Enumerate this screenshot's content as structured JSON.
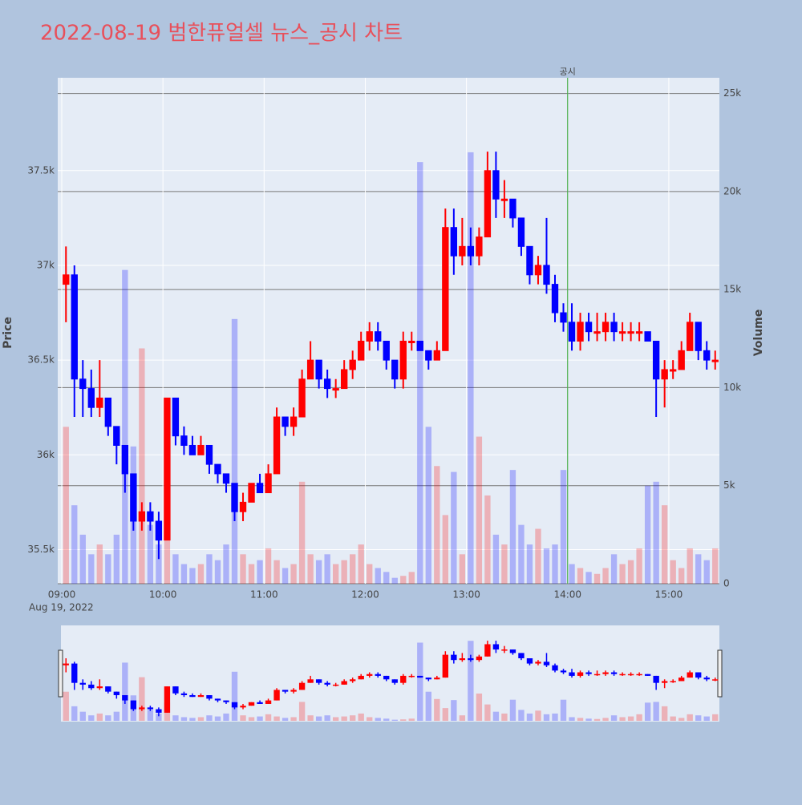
{
  "chart_data": {
    "type": "candlestick",
    "title": "2022-08-19 범한퓨얼셀 뉴스_공시 차트",
    "y_label": "Price",
    "y2_label": "Volume",
    "x_date_label": "Aug 19, 2022",
    "increasing_color": "#ff0000",
    "decreasing_color": "#0000ff",
    "x": [
      "2022-08-19 09:00",
      "2022-08-19 09:05",
      "2022-08-19 09:10",
      "2022-08-19 09:15",
      "2022-08-19 09:20",
      "2022-08-19 09:25",
      "2022-08-19 09:30",
      "2022-08-19 09:35",
      "2022-08-19 09:40",
      "2022-08-19 09:45",
      "2022-08-19 09:50",
      "2022-08-19 09:55",
      "2022-08-19 10:00",
      "2022-08-19 10:05",
      "2022-08-19 10:10",
      "2022-08-19 10:15",
      "2022-08-19 10:20",
      "2022-08-19 10:25",
      "2022-08-19 10:30",
      "2022-08-19 10:35",
      "2022-08-19 10:40",
      "2022-08-19 10:45",
      "2022-08-19 10:50",
      "2022-08-19 10:55",
      "2022-08-19 11:00",
      "2022-08-19 11:05",
      "2022-08-19 11:10",
      "2022-08-19 11:15",
      "2022-08-19 11:20",
      "2022-08-19 11:25",
      "2022-08-19 11:30",
      "2022-08-19 11:35",
      "2022-08-19 11:40",
      "2022-08-19 11:45",
      "2022-08-19 11:50",
      "2022-08-19 11:55",
      "2022-08-19 12:00",
      "2022-08-19 12:05",
      "2022-08-19 12:10",
      "2022-08-19 12:15",
      "2022-08-19 12:20",
      "2022-08-19 12:25",
      "2022-08-19 12:30",
      "2022-08-19 12:35",
      "2022-08-19 12:40",
      "2022-08-19 12:45",
      "2022-08-19 12:50",
      "2022-08-19 12:55",
      "2022-08-19 13:00",
      "2022-08-19 13:05",
      "2022-08-19 13:10",
      "2022-08-19 13:15",
      "2022-08-19 13:20",
      "2022-08-19 13:25",
      "2022-08-19 13:30",
      "2022-08-19 13:35",
      "2022-08-19 13:40",
      "2022-08-19 13:45",
      "2022-08-19 13:50",
      "2022-08-19 13:55",
      "2022-08-19 14:00",
      "2022-08-19 14:05",
      "2022-08-19 14:10",
      "2022-08-19 14:15",
      "2022-08-19 14:20",
      "2022-08-19 14:25",
      "2022-08-19 14:30",
      "2022-08-19 14:35",
      "2022-08-19 14:40",
      "2022-08-19 14:45",
      "2022-08-19 14:50",
      "2022-08-19 14:55",
      "2022-08-19 15:00",
      "2022-08-19 15:05",
      "2022-08-19 15:10",
      "2022-08-19 15:15",
      "2022-08-19 15:20",
      "2022-08-19 15:25"
    ],
    "open": [
      36900,
      36950,
      36400,
      36350,
      36250,
      36300,
      36150,
      36050,
      35900,
      35650,
      35700,
      35650,
      35550,
      36300,
      36100,
      36050,
      36000,
      36050,
      35950,
      35900,
      35850,
      35700,
      35750,
      35850,
      35800,
      35900,
      36200,
      36150,
      36200,
      36400,
      36500,
      36400,
      36350,
      36350,
      36450,
      36500,
      36600,
      36650,
      36600,
      36500,
      36400,
      36600,
      36600,
      36550,
      36500,
      36550,
      37200,
      37050,
      37100,
      37050,
      37150,
      37500,
      37350,
      37350,
      37250,
      37100,
      36950,
      37000,
      36900,
      36750,
      36700,
      36600,
      36700,
      36650,
      36650,
      36700,
      36650,
      36650,
      36650,
      36650,
      36600,
      36400,
      36450,
      36450,
      36550,
      36700,
      36550,
      36500
    ],
    "high": [
      37100,
      37000,
      36500,
      36450,
      36500,
      36300,
      36150,
      36050,
      35900,
      35750,
      35750,
      35700,
      36300,
      36300,
      36150,
      36100,
      36100,
      36050,
      35950,
      35900,
      35850,
      35800,
      35850,
      35900,
      35950,
      36250,
      36200,
      36250,
      36450,
      36600,
      36500,
      36450,
      36400,
      36500,
      36550,
      36650,
      36700,
      36700,
      36600,
      36500,
      36650,
      36650,
      36600,
      36550,
      36600,
      37300,
      37300,
      37250,
      37200,
      37200,
      37600,
      37600,
      37450,
      37350,
      37250,
      37100,
      37050,
      37250,
      36950,
      36800,
      36800,
      36750,
      36750,
      36750,
      36750,
      36750,
      36700,
      36700,
      36700,
      36650,
      36600,
      36500,
      36500,
      36600,
      36750,
      36700,
      36600,
      36550
    ],
    "low": [
      36700,
      36200,
      36200,
      36200,
      36200,
      36100,
      35950,
      35800,
      35600,
      35600,
      35600,
      35450,
      35550,
      36050,
      36000,
      36000,
      36000,
      35900,
      35850,
      35800,
      35650,
      35650,
      35750,
      35800,
      35800,
      35900,
      36100,
      36100,
      36200,
      36400,
      36350,
      36300,
      36300,
      36350,
      36400,
      36500,
      36550,
      36550,
      36450,
      36350,
      36350,
      36550,
      36550,
      36450,
      36500,
      36550,
      36950,
      37000,
      37000,
      37000,
      37150,
      37250,
      37250,
      37200,
      37050,
      36900,
      36900,
      36850,
      36700,
      36650,
      36550,
      36550,
      36600,
      36600,
      36600,
      36600,
      36600,
      36600,
      36600,
      36600,
      36200,
      36250,
      36400,
      36450,
      36550,
      36500,
      36450,
      36450
    ],
    "close": [
      36950,
      36400,
      36350,
      36250,
      36300,
      36150,
      36050,
      35900,
      35650,
      35700,
      35650,
      35550,
      36300,
      36100,
      36050,
      36000,
      36050,
      35950,
      35900,
      35850,
      35700,
      35750,
      35850,
      35800,
      35900,
      36200,
      36150,
      36200,
      36400,
      36500,
      36400,
      36350,
      36350,
      36450,
      36500,
      36600,
      36650,
      36600,
      36500,
      36400,
      36600,
      36600,
      36550,
      36500,
      36550,
      37200,
      37050,
      37100,
      37050,
      37150,
      37500,
      37350,
      37350,
      37250,
      37100,
      36950,
      37000,
      36900,
      36750,
      36700,
      36600,
      36700,
      36650,
      36650,
      36700,
      36650,
      36650,
      36650,
      36650,
      36600,
      36400,
      36450,
      36450,
      36550,
      36700,
      36550,
      36500,
      36500
    ],
    "volume": [
      8000,
      4000,
      2500,
      1500,
      2000,
      1500,
      2500,
      16000,
      7000,
      12000,
      3000,
      2000,
      5000,
      1500,
      1000,
      800,
      1000,
      1500,
      1200,
      2000,
      13500,
      1500,
      1000,
      1200,
      1800,
      1200,
      800,
      1000,
      5200,
      1500,
      1200,
      1500,
      1000,
      1200,
      1500,
      2000,
      1000,
      800,
      600,
      300,
      400,
      600,
      21500,
      8000,
      6000,
      3500,
      5700,
      1500,
      22000,
      7500,
      4500,
      2500,
      2000,
      5800,
      3000,
      2000,
      2800,
      1800,
      2000,
      5800,
      1000,
      800,
      600,
      500,
      800,
      1500,
      1000,
      1200,
      1800,
      5000,
      5200,
      4000,
      1200,
      800,
      1800,
      1500,
      1200,
      1800
    ],
    "xlim": [
      "2022-08-19 09:00",
      "2022-08-19 15:30"
    ],
    "xticks": [
      {
        "value": "2022-08-19 09:00",
        "label": "09:00"
      },
      {
        "value": "2022-08-19 10:00",
        "label": "10:00"
      },
      {
        "value": "2022-08-19 11:00",
        "label": "11:00"
      },
      {
        "value": "2022-08-19 12:00",
        "label": "12:00"
      },
      {
        "value": "2022-08-19 13:00",
        "label": "13:00"
      },
      {
        "value": "2022-08-19 14:00",
        "label": "14:00"
      },
      {
        "value": "2022-08-19 15:00",
        "label": "15:00"
      }
    ],
    "ylim": [
      35320,
      37990
    ],
    "yticks": [
      {
        "value": 35500,
        "label": "35.5k"
      },
      {
        "value": 36000,
        "label": "36k"
      },
      {
        "value": 36500,
        "label": "36.5k"
      },
      {
        "value": 37000,
        "label": "37k"
      },
      {
        "value": 37500,
        "label": "37.5k"
      }
    ],
    "y2lim": [
      0,
      25800
    ],
    "y2ticks": [
      0,
      {
        "value": 5000,
        "label": "5k"
      },
      {
        "value": 10000,
        "label": "10k"
      },
      {
        "value": 15000,
        "label": "15k"
      },
      {
        "value": 20000,
        "label": "20k"
      },
      {
        "value": 25000,
        "label": "25k"
      }
    ],
    "annotation": {
      "text": "공시",
      "x": "2022-08-19 14:00",
      "color": "#2ca02c"
    },
    "grid": true,
    "rangeslider": true
  }
}
